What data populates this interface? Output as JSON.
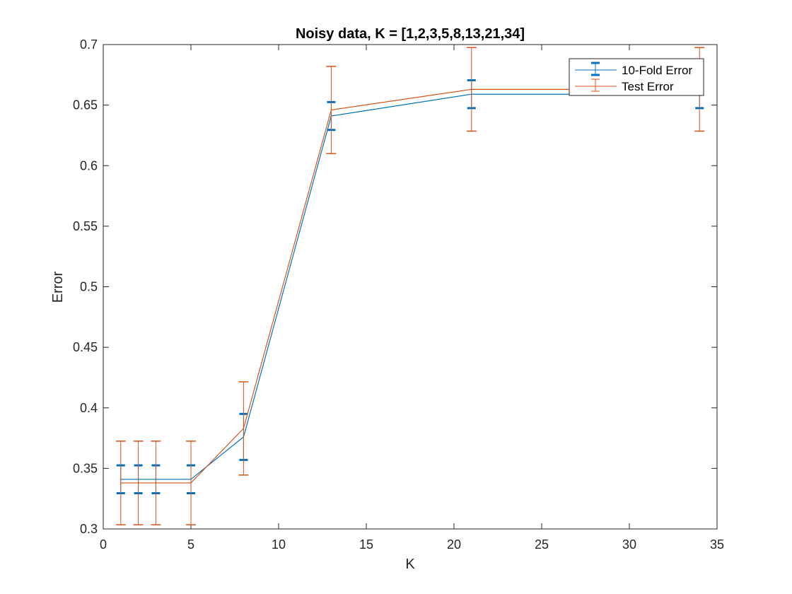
{
  "chart_data": {
    "type": "line",
    "title": "Noisy data, K = [1,2,3,5,8,13,21,34]",
    "xlabel": "K",
    "ylabel": "Error",
    "xlim": [
      0,
      35
    ],
    "ylim": [
      0.3,
      0.7
    ],
    "xticks": [
      "0",
      "5",
      "10",
      "15",
      "20",
      "25",
      "30",
      "35"
    ],
    "yticks": [
      "0.3",
      "0.35",
      "0.4",
      "0.45",
      "0.5",
      "0.55",
      "0.6",
      "0.65",
      "0.7"
    ],
    "legend_position": "top-right",
    "x": [
      1,
      2,
      3,
      5,
      8,
      13,
      21,
      34
    ],
    "series": [
      {
        "name": "10-Fold Error",
        "color": "#0072BD",
        "values": [
          0.341,
          0.341,
          0.341,
          0.341,
          0.376,
          0.641,
          0.659,
          0.659
        ],
        "err": [
          0.0115,
          0.0115,
          0.0115,
          0.0115,
          0.019,
          0.0115,
          0.0115,
          0.0115
        ]
      },
      {
        "name": "Test Error",
        "color": "#D95319",
        "values": [
          0.338,
          0.338,
          0.338,
          0.338,
          0.383,
          0.646,
          0.663,
          0.663
        ],
        "err": [
          0.0345,
          0.0345,
          0.0345,
          0.0345,
          0.0385,
          0.036,
          0.0345,
          0.0345
        ]
      }
    ]
  }
}
